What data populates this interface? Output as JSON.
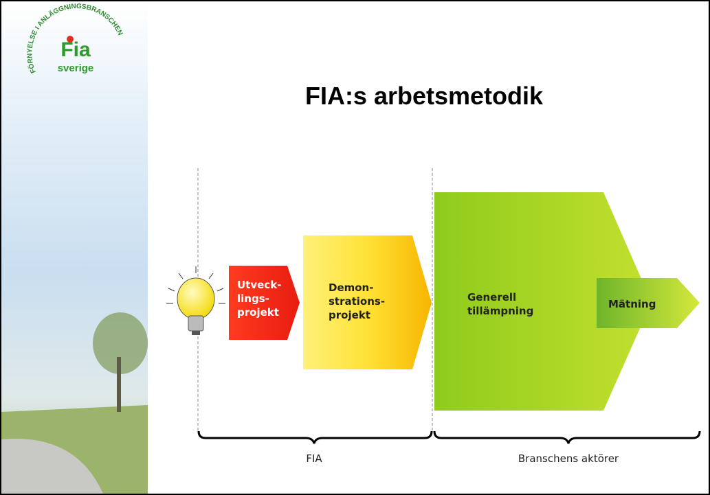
{
  "logo": {
    "arc_text": "FÖRNYELSE I ANLÄGGNINGSBRANSCHEN",
    "name": "Fia",
    "sub": "sverige"
  },
  "title": "FIA:s arbetsmetodik",
  "steps": [
    {
      "lines": [
        "Utveck-",
        "lings-",
        "projekt"
      ]
    },
    {
      "lines": [
        "Demon-",
        "strations-",
        "projekt"
      ]
    },
    {
      "lines": [
        "Generell",
        "tillämpning"
      ]
    },
    {
      "lines": [
        "Mätning"
      ]
    }
  ],
  "groups": [
    "FIA",
    "Branschens aktörer"
  ]
}
